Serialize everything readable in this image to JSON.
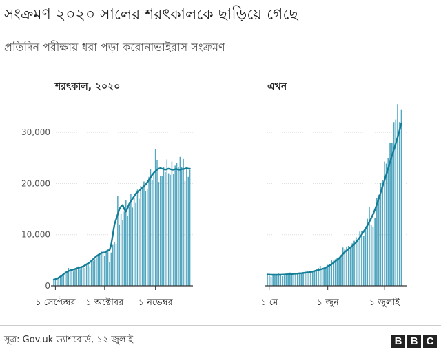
{
  "header": {
    "title": "সংক্রমণ ২০২০ সালের শরৎকালকে ছাড়িয়ে গেছে",
    "subtitle": "প্রতিদিন পরীক্ষায় ধরা পড়া করোনাভাইরাস সংক্রমণ"
  },
  "footer": {
    "source": "সূত্র: Gov.uk ড্যাশবোর্ড, ১২ জুলাই",
    "logo_letters": [
      "B",
      "B",
      "C"
    ]
  },
  "colors": {
    "bar": "#52a6bf",
    "line": "#147d98",
    "grid": "#dddddd",
    "axis": "#333333",
    "text": "#222222"
  },
  "chart_data": [
    {
      "type": "bar",
      "title": "শরৎকাল, ২০২০",
      "xlabel": "",
      "ylabel": "",
      "ylim": [
        0,
        35000
      ],
      "yticks": [
        0,
        10000,
        20000,
        30000
      ],
      "ytick_labels": [
        "0",
        "10,000",
        "20,000",
        "30,000"
      ],
      "grid": true,
      "x_start": "2020-08-31",
      "x_end": "2020-11-23",
      "xticks": [
        {
          "date": "2020-09-01",
          "label": "১ সেপ্টেম্বর"
        },
        {
          "date": "2020-10-01",
          "label": "১ অক্টোবর"
        },
        {
          "date": "2020-11-01",
          "label": "১ নভেম্বর"
        }
      ],
      "series": [
        {
          "kind": "bar",
          "start": "2020-08-31",
          "values": [
            1400,
            1300,
            1500,
            1600,
            1800,
            2000,
            2100,
            2800,
            2900,
            3500,
            3300,
            3000,
            2800,
            3300,
            3600,
            3800,
            3200,
            3600,
            3900,
            3500,
            4100,
            4300,
            3800,
            4600,
            4900,
            5200,
            5600,
            5900,
            6400,
            6700,
            6600,
            5900,
            6900,
            7100,
            4600,
            6500,
            8000,
            8600,
            8200,
            17500,
            12000,
            14000,
            12800,
            14500,
            16700,
            13700,
            15500,
            18000,
            15300,
            17200,
            16200,
            18800,
            17000,
            19500,
            19400,
            20400,
            18500,
            19000,
            21300,
            22800,
            20600,
            22000,
            26700,
            24500,
            20300,
            21500,
            21500,
            23200,
            22200,
            24700,
            22000,
            21700,
            24300,
            21900,
            23500,
            24100,
            23200,
            25200,
            23200,
            24800,
            20500,
            22900,
            21300,
            22700
          ]
        },
        {
          "kind": "line",
          "name": "",
          "start": "2020-08-31",
          "values": [
            1200,
            1300,
            1400,
            1600,
            1800,
            2000,
            2300,
            2500,
            2700,
            2900,
            3000,
            3100,
            3200,
            3300,
            3400,
            3500,
            3600,
            3700,
            3800,
            4000,
            4200,
            4400,
            4600,
            4900,
            5200,
            5500,
            5800,
            6000,
            6200,
            6400,
            6500,
            6500,
            6700,
            6900,
            7000,
            8000,
            10000,
            12000,
            13000,
            14000,
            15000,
            15500,
            15800,
            15000,
            14500,
            15200,
            16000,
            16500,
            17000,
            17500,
            18000,
            18300,
            18600,
            18900,
            19200,
            19500,
            19800,
            20200,
            20700,
            21200,
            21700,
            22100,
            22400,
            22700,
            22900,
            23000,
            22900,
            22800,
            22700,
            22800,
            22900,
            22800,
            22700,
            22700,
            22800,
            22800,
            22700,
            22700,
            22800,
            22800,
            22900,
            23000,
            22900,
            22900
          ]
        }
      ]
    },
    {
      "type": "bar",
      "title": "এখন",
      "xlabel": "",
      "ylabel": "",
      "ylim": [
        0,
        35000
      ],
      "yticks": [
        0,
        10000,
        20000,
        30000
      ],
      "grid": true,
      "x_start": "2021-04-30",
      "x_end": "2021-07-12",
      "xticks": [
        {
          "date": "2021-05-01",
          "label": "১ মে"
        },
        {
          "date": "2021-06-01",
          "label": "১ জুন"
        },
        {
          "date": "2021-07-01",
          "label": "১ জুলাই"
        }
      ],
      "series": [
        {
          "kind": "bar",
          "start": "2021-04-30",
          "values": [
            2400,
            2000,
            1800,
            2300,
            2100,
            2200,
            2400,
            2300,
            1900,
            2000,
            2300,
            2500,
            2600,
            2500,
            2100,
            2200,
            2400,
            2600,
            2500,
            2700,
            2800,
            3000,
            2600,
            2500,
            2700,
            2900,
            3200,
            3500,
            3900,
            3400,
            3300,
            3700,
            4100,
            4300,
            5000,
            4900,
            5200,
            5400,
            5500,
            6000,
            7500,
            7100,
            7700,
            7800,
            7600,
            8300,
            8800,
            9500,
            9100,
            10600,
            10700,
            9800,
            11600,
            13100,
            15400,
            11900,
            11600,
            13300,
            17200,
            17800,
            20200,
            20600,
            24300,
            23900,
            25000,
            27900,
            28000,
            32000,
            32500,
            35500,
            32000,
            34500
          ]
        },
        {
          "kind": "line",
          "name": "",
          "start": "2021-04-30",
          "values": [
            2200,
            2200,
            2150,
            2150,
            2150,
            2150,
            2150,
            2150,
            2200,
            2200,
            2250,
            2250,
            2300,
            2300,
            2350,
            2350,
            2400,
            2450,
            2450,
            2500,
            2550,
            2600,
            2650,
            2700,
            2800,
            2900,
            3000,
            3100,
            3200,
            3300,
            3400,
            3600,
            3800,
            4000,
            4200,
            4500,
            4800,
            5100,
            5400,
            5800,
            6200,
            6600,
            6900,
            7200,
            7500,
            7800,
            8100,
            8500,
            9000,
            9500,
            10000,
            10600,
            11200,
            11800,
            12500,
            13200,
            14000,
            14900,
            15900,
            17000,
            18200,
            19400,
            20600,
            21800,
            23000,
            24200,
            25400,
            26600,
            27800,
            29000,
            30400,
            31800
          ]
        }
      ]
    }
  ]
}
